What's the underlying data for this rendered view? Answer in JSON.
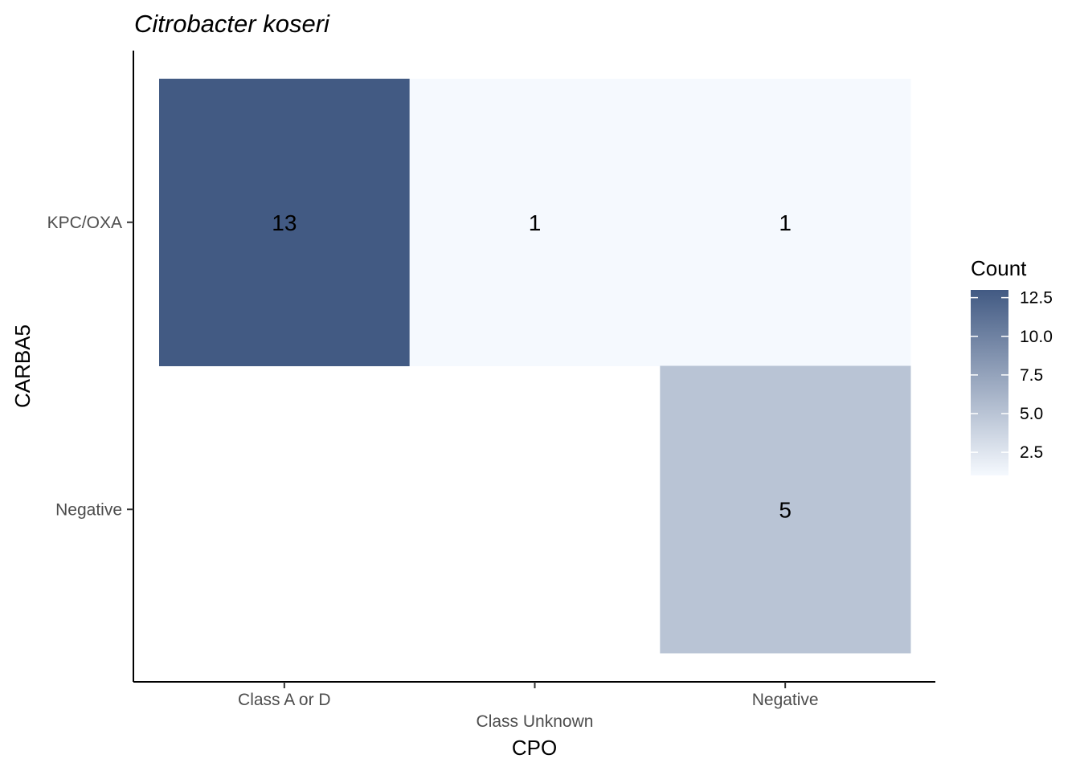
{
  "chart_data": {
    "type": "heatmap",
    "title": "Citrobacter koseri",
    "xlabel": "CPO",
    "ylabel": "CARBA5",
    "x_categories": [
      "Class A or D",
      "Class Unknown",
      "Negative"
    ],
    "y_categories": [
      "KPC/OXA",
      "Negative"
    ],
    "cells": [
      {
        "x": "Class A or D",
        "y": "KPC/OXA",
        "value": 13
      },
      {
        "x": "Class Unknown",
        "y": "KPC/OXA",
        "value": 1
      },
      {
        "x": "Negative",
        "y": "KPC/OXA",
        "value": 1
      },
      {
        "x": "Negative",
        "y": "Negative",
        "value": 5
      }
    ],
    "legend": {
      "title": "Count",
      "ticks": [
        "2.5",
        "5.0",
        "7.5",
        "10.0",
        "12.5"
      ],
      "tick_values": [
        2.5,
        5.0,
        7.5,
        10.0,
        12.5
      ],
      "range": [
        1,
        13
      ],
      "position": "right"
    },
    "colors": {
      "low": "#f5f9fe",
      "high": "#425a83"
    },
    "grid": false
  }
}
